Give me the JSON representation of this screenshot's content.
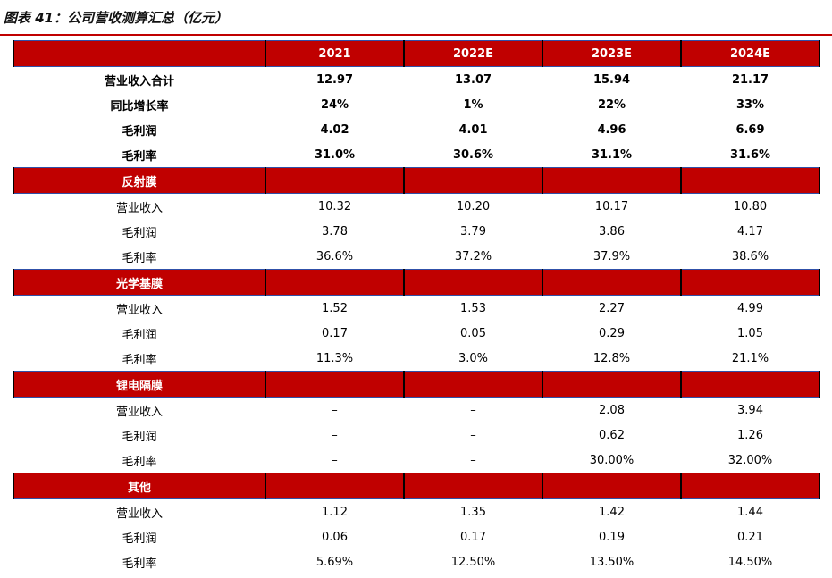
{
  "title": "图表 41：公司营收测算汇总（亿元）",
  "columns": [
    "2021",
    "2022E",
    "2023E",
    "2024E"
  ],
  "summary": [
    {
      "label": "营业收入合计",
      "values": [
        "12.97",
        "13.07",
        "15.94",
        "21.17"
      ]
    },
    {
      "label": "同比增长率",
      "values": [
        "24%",
        "1%",
        "22%",
        "33%"
      ]
    },
    {
      "label": "毛利润",
      "values": [
        "4.02",
        "4.01",
        "4.96",
        "6.69"
      ]
    },
    {
      "label": "毛利率",
      "values": [
        "31.0%",
        "30.6%",
        "31.1%",
        "31.6%"
      ]
    }
  ],
  "segments": [
    {
      "name": "反射膜",
      "rows": [
        {
          "label": "营业收入",
          "values": [
            "10.32",
            "10.20",
            "10.17",
            "10.80"
          ]
        },
        {
          "label": "毛利润",
          "values": [
            "3.78",
            "3.79",
            "3.86",
            "4.17"
          ]
        },
        {
          "label": "毛利率",
          "values": [
            "36.6%",
            "37.2%",
            "37.9%",
            "38.6%"
          ]
        }
      ]
    },
    {
      "name": "光学基膜",
      "rows": [
        {
          "label": "营业收入",
          "values": [
            "1.52",
            "1.53",
            "2.27",
            "4.99"
          ]
        },
        {
          "label": "毛利润",
          "values": [
            "0.17",
            "0.05",
            "0.29",
            "1.05"
          ]
        },
        {
          "label": "毛利率",
          "values": [
            "11.3%",
            "3.0%",
            "12.8%",
            "21.1%"
          ]
        }
      ]
    },
    {
      "name": "锂电隔膜",
      "rows": [
        {
          "label": "营业收入",
          "values": [
            "–",
            "–",
            "2.08",
            "3.94"
          ]
        },
        {
          "label": "毛利润",
          "values": [
            "–",
            "–",
            "0.62",
            "1.26"
          ]
        },
        {
          "label": "毛利率",
          "values": [
            "–",
            "–",
            "30.00%",
            "32.00%"
          ]
        }
      ]
    },
    {
      "name": "其他",
      "rows": [
        {
          "label": "营业收入",
          "values": [
            "1.12",
            "1.35",
            "1.42",
            "1.44"
          ]
        },
        {
          "label": "毛利润",
          "values": [
            "0.06",
            "0.17",
            "0.19",
            "0.21"
          ]
        },
        {
          "label": "毛利率",
          "values": [
            "5.69%",
            "12.50%",
            "13.50%",
            "14.50%"
          ]
        }
      ]
    }
  ]
}
